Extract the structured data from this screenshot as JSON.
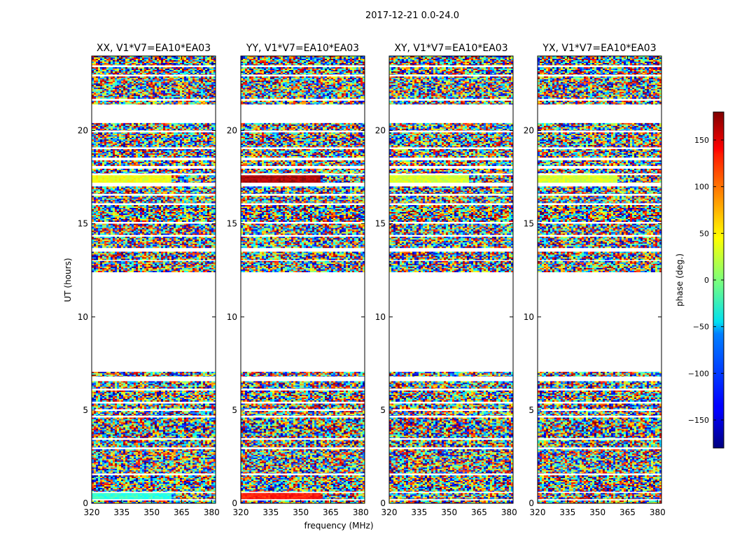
{
  "figure": {
    "suptitle": "2017-12-21 0.0-24.0"
  },
  "chart_data": {
    "type": "heatmap",
    "title": "2017-12-21 0.0-24.0",
    "xlabel": "frequency (MHz)",
    "ylabel": "UT (hours)",
    "xlim": [
      320,
      382
    ],
    "ylim": [
      0,
      24
    ],
    "xticks": [
      320,
      335,
      350,
      365,
      380
    ],
    "xtick_labels": [
      "320",
      "335",
      "350",
      "365",
      "380"
    ],
    "yticks": [
      0,
      5,
      10,
      15,
      20
    ],
    "ytick_labels": [
      "0",
      "5",
      "10",
      "15",
      "20"
    ],
    "panels": [
      {
        "title": "XX, V1*V7=EA10*EA03",
        "coherent_phase": {
          "ut_17_5": 40,
          "ut_6_7": 30,
          "ut_0_3": -30
        }
      },
      {
        "title": "YY, V1*V7=EA10*EA03",
        "coherent_phase": {
          "ut_17_5": 165,
          "ut_6_7": 150,
          "ut_0_3": 130
        }
      },
      {
        "title": "XY, V1*V7=EA10*EA03",
        "coherent_phase": {
          "ut_17_5": 30,
          "ut_6_7": null,
          "ut_0_3": null
        }
      },
      {
        "title": "YX, V1*V7=EA10*EA03",
        "coherent_phase": {
          "ut_17_5": 30,
          "ut_6_7": null,
          "ut_0_3": null
        }
      }
    ],
    "data_ut_ranges": [
      [
        0.0,
        0.15
      ],
      [
        0.22,
        0.55
      ],
      [
        0.62,
        1.5
      ],
      [
        1.6,
        2.9
      ],
      [
        3.0,
        3.4
      ],
      [
        3.5,
        4.6
      ],
      [
        4.7,
        4.95
      ],
      [
        5.05,
        5.35
      ],
      [
        5.45,
        6.05
      ],
      [
        6.15,
        6.55
      ],
      [
        6.8,
        7.05
      ],
      [
        12.4,
        13.0
      ],
      [
        13.05,
        13.5
      ],
      [
        13.7,
        14.3
      ],
      [
        14.4,
        15.0
      ],
      [
        15.1,
        16.0
      ],
      [
        16.1,
        16.5
      ],
      [
        16.6,
        17.0
      ],
      [
        17.2,
        17.6
      ],
      [
        17.7,
        17.95
      ],
      [
        18.1,
        18.4
      ],
      [
        18.55,
        19.0
      ],
      [
        19.1,
        19.9
      ],
      [
        20.0,
        20.4
      ],
      [
        21.4,
        21.6
      ],
      [
        21.7,
        22.9
      ],
      [
        23.0,
        23.4
      ],
      [
        23.5,
        24.0
      ]
    ],
    "colorbar": {
      "label": "phase (deg.)",
      "range": [
        -180,
        180
      ],
      "ticks": [
        -150,
        -100,
        -50,
        0,
        50,
        100,
        150
      ],
      "tick_labels": [
        "−150",
        "−100",
        "−50",
        "0",
        "50",
        "100",
        "150"
      ],
      "colormap": "jet"
    }
  }
}
